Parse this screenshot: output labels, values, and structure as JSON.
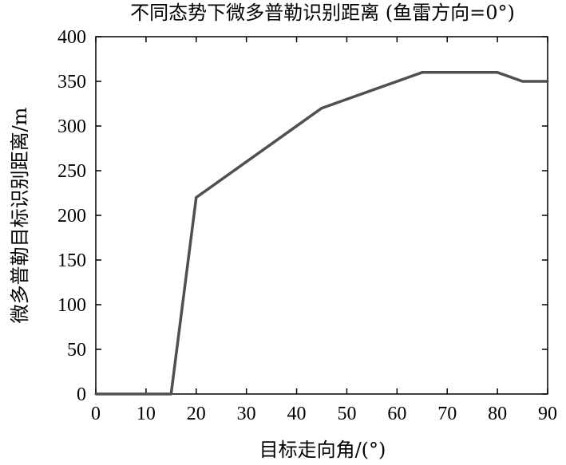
{
  "chart_data": {
    "type": "line",
    "title": "不同态势下微多普勒识别距离 (鱼雷方向=0°)",
    "xlabel": "目标走向角/(°)",
    "ylabel": "微多普勒目标识别距离/m",
    "xlim": [
      0,
      90
    ],
    "ylim": [
      0,
      400
    ],
    "xticks": [
      0,
      10,
      20,
      30,
      40,
      50,
      60,
      70,
      80,
      90
    ],
    "yticks": [
      0,
      50,
      100,
      150,
      200,
      250,
      300,
      350,
      400
    ],
    "grid": false,
    "legend": "none",
    "line_color": "#505050",
    "series": [
      {
        "x": [
          0,
          15,
          20,
          45,
          65,
          80,
          85,
          90
        ],
        "y": [
          0,
          0,
          220,
          320,
          360,
          360,
          350,
          350
        ]
      }
    ]
  }
}
